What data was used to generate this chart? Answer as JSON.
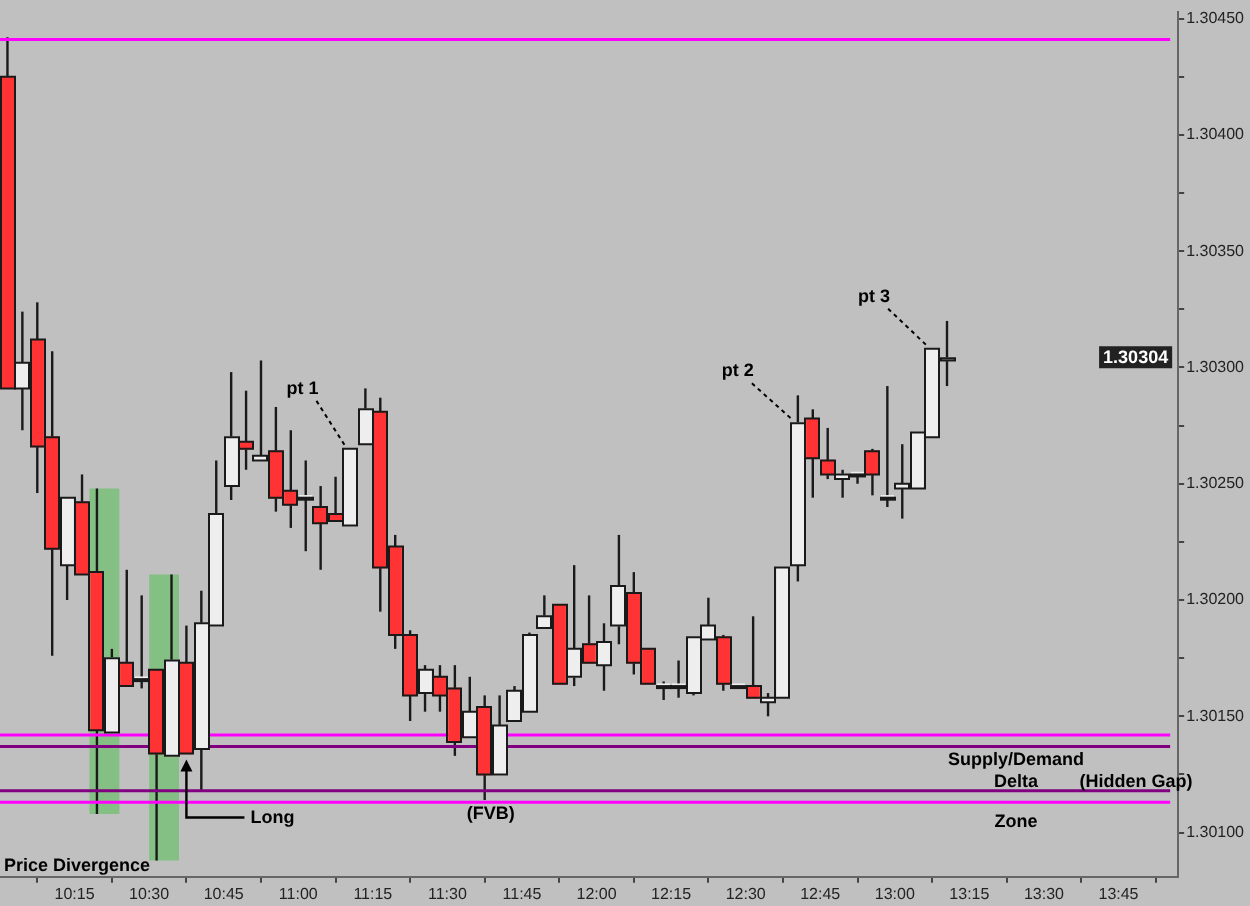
{
  "chart_data": {
    "type": "candlestick",
    "x": [
      10.025,
      10.075,
      10.125,
      10.175,
      10.225,
      10.275,
      10.325,
      10.375,
      10.425,
      10.475,
      10.525,
      10.575,
      10.625,
      10.675,
      10.725,
      10.775,
      10.825,
      10.875,
      10.925,
      10.975,
      11.025,
      11.075,
      11.125,
      11.175,
      11.225,
      11.275,
      11.325,
      11.375,
      11.425,
      11.475,
      11.525,
      11.575,
      11.625,
      11.675,
      11.725,
      11.775,
      11.825,
      11.875,
      11.925,
      11.975,
      12.025,
      12.075,
      12.125,
      12.175,
      12.225,
      12.275,
      12.325,
      12.375,
      12.425,
      12.475,
      12.525,
      12.575,
      12.625,
      12.675,
      12.725,
      12.775,
      12.825,
      12.875,
      12.925,
      12.975,
      13.025,
      13.075,
      13.125,
      13.175
    ],
    "ohlc": [
      [
        1.30425,
        1.30442,
        1.30291,
        1.30291
      ],
      [
        1.30291,
        1.30324,
        1.30273,
        1.30302
      ],
      [
        1.30312,
        1.30328,
        1.30246,
        1.30266
      ],
      [
        1.3027,
        1.30307,
        1.30176,
        1.30222
      ],
      [
        1.30215,
        1.30244,
        1.302,
        1.30244
      ],
      [
        1.30242,
        1.30254,
        1.30211,
        1.30211
      ],
      [
        1.30212,
        1.30248,
        1.30108,
        1.30144
      ],
      [
        1.30143,
        1.30179,
        1.30143,
        1.30175
      ],
      [
        1.30173,
        1.30213,
        1.30163,
        1.30163
      ],
      [
        1.30166,
        1.30202,
        1.30162,
        1.30166
      ],
      [
        1.3017,
        1.3017,
        1.30088,
        1.30134
      ],
      [
        1.30133,
        1.30211,
        1.30133,
        1.30174
      ],
      [
        1.30173,
        1.30189,
        1.30134,
        1.30134
      ],
      [
        1.30136,
        1.30204,
        1.30118,
        1.3019
      ],
      [
        1.30189,
        1.3026,
        1.30189,
        1.30237
      ],
      [
        1.30249,
        1.30298,
        1.30243,
        1.3027
      ],
      [
        1.30268,
        1.3029,
        1.30256,
        1.30265
      ],
      [
        1.3026,
        1.30303,
        1.3026,
        1.30262
      ],
      [
        1.30264,
        1.30283,
        1.30238,
        1.30244
      ],
      [
        1.30247,
        1.30273,
        1.30231,
        1.30241
      ],
      [
        1.30244,
        1.3026,
        1.30221,
        1.30244
      ],
      [
        1.3024,
        1.30249,
        1.30213,
        1.30233
      ],
      [
        1.30237,
        1.30253,
        1.30234,
        1.30234
      ],
      [
        1.30232,
        1.30265,
        1.30232,
        1.30265
      ],
      [
        1.30267,
        1.30291,
        1.30267,
        1.30282
      ],
      [
        1.30281,
        1.30287,
        1.30195,
        1.30214
      ],
      [
        1.30223,
        1.30228,
        1.30179,
        1.30185
      ],
      [
        1.30185,
        1.30187,
        1.30148,
        1.30159
      ],
      [
        1.3016,
        1.30172,
        1.30152,
        1.3017
      ],
      [
        1.30167,
        1.30172,
        1.30152,
        1.30159
      ],
      [
        1.30162,
        1.30172,
        1.30133,
        1.30139
      ],
      [
        1.30141,
        1.30167,
        1.30141,
        1.30152
      ],
      [
        1.30154,
        1.30159,
        1.30114,
        1.30125
      ],
      [
        1.30125,
        1.30159,
        1.30125,
        1.30146
      ],
      [
        1.30148,
        1.30163,
        1.30148,
        1.30161
      ],
      [
        1.30152,
        1.30186,
        1.30152,
        1.30185
      ],
      [
        1.30188,
        1.30202,
        1.30188,
        1.30193
      ],
      [
        1.30198,
        1.30198,
        1.30164,
        1.30164
      ],
      [
        1.30167,
        1.30215,
        1.30163,
        1.30179
      ],
      [
        1.30181,
        1.30202,
        1.30173,
        1.30173
      ],
      [
        1.30172,
        1.3019,
        1.30161,
        1.30182
      ],
      [
        1.30189,
        1.30228,
        1.30181,
        1.30206
      ],
      [
        1.30203,
        1.30212,
        1.30168,
        1.30173
      ],
      [
        1.30179,
        1.30179,
        1.30164,
        1.30164
      ],
      [
        1.30163,
        1.30165,
        1.30157,
        1.30163
      ],
      [
        1.30163,
        1.30174,
        1.30158,
        1.30163
      ],
      [
        1.3016,
        1.30184,
        1.30159,
        1.30184
      ],
      [
        1.30183,
        1.30201,
        1.30183,
        1.30189
      ],
      [
        1.30184,
        1.30185,
        1.30161,
        1.30164
      ],
      [
        1.30163,
        1.30163,
        1.30162,
        1.30163
      ],
      [
        1.30163,
        1.30193,
        1.30158,
        1.30158
      ],
      [
        1.30156,
        1.3016,
        1.3015,
        1.30158
      ],
      [
        1.30158,
        1.30214,
        1.30158,
        1.30214
      ],
      [
        1.30215,
        1.30288,
        1.30208,
        1.30276
      ],
      [
        1.30278,
        1.30282,
        1.30244,
        1.30261
      ],
      [
        1.3026,
        1.30274,
        1.30252,
        1.30254
      ],
      [
        1.30252,
        1.30256,
        1.30244,
        1.30254
      ],
      [
        1.30254,
        1.30255,
        1.3025,
        1.30254
      ],
      [
        1.30264,
        1.30265,
        1.30245,
        1.30254
      ],
      [
        1.30244,
        1.30292,
        1.3024,
        1.30244
      ],
      [
        1.30248,
        1.30267,
        1.30235,
        1.3025
      ],
      [
        1.30248,
        1.30272,
        1.30248,
        1.30272
      ],
      [
        1.3027,
        1.30308,
        1.3027,
        1.30308
      ],
      [
        1.30303,
        1.3032,
        1.30292,
        1.30304
      ]
    ],
    "colors": [
      "#ff3333",
      "#eeeeee",
      "#ff3333",
      "#ff3333",
      "#eeeeee",
      "#ff3333",
      "#ff3333",
      "#eeeeee",
      "#ff3333",
      "#eeeeee",
      "#ff3333",
      "#eeeeee",
      "#ff3333",
      "#eeeeee",
      "#eeeeee",
      "#eeeeee",
      "#ff3333",
      "#eeeeee",
      "#ff3333",
      "#ff3333",
      "#eeeeee",
      "#ff3333",
      "#ff3333",
      "#eeeeee",
      "#eeeeee",
      "#ff3333",
      "#ff3333",
      "#ff3333",
      "#eeeeee",
      "#ff3333",
      "#ff3333",
      "#eeeeee",
      "#ff3333",
      "#eeeeee",
      "#eeeeee",
      "#eeeeee",
      "#eeeeee",
      "#ff3333",
      "#eeeeee",
      "#ff3333",
      "#eeeeee",
      "#eeeeee",
      "#ff3333",
      "#ff3333",
      "#eeeeee",
      "#eeeeee",
      "#eeeeee",
      "#eeeeee",
      "#ff3333",
      "#eeeeee",
      "#ff3333",
      "#eeeeee",
      "#eeeeee",
      "#eeeeee",
      "#ff3333",
      "#ff3333",
      "#eeeeee",
      "#eeeeee",
      "#ff3333",
      "#eeeeee",
      "#eeeeee",
      "#eeeeee",
      "#eeeeee",
      "#eeeeee"
    ],
    "xlim": [
      10,
      13.95
    ],
    "xticks": [
      {
        "value": 10.25,
        "label": "10:15"
      },
      {
        "value": 10.5,
        "label": "10:30"
      },
      {
        "value": 10.75,
        "label": "10:45"
      },
      {
        "value": 11,
        "label": "11:00"
      },
      {
        "value": 11.25,
        "label": "11:15"
      },
      {
        "value": 11.5,
        "label": "11:30"
      },
      {
        "value": 11.75,
        "label": "11:45"
      },
      {
        "value": 12,
        "label": "12:00"
      },
      {
        "value": 12.25,
        "label": "12:15"
      },
      {
        "value": 12.5,
        "label": "12:30"
      },
      {
        "value": 12.75,
        "label": "12:45"
      },
      {
        "value": 13,
        "label": "13:00"
      },
      {
        "value": 13.25,
        "label": "13:15"
      },
      {
        "value": 13.5,
        "label": "13:30"
      },
      {
        "value": 13.75,
        "label": "13:45"
      }
    ],
    "ylim": [
      1.30081,
      1.30453
    ],
    "yticks": [
      {
        "value": 1.301,
        "label": "1.30100"
      },
      {
        "value": 1.30125,
        "label": null
      },
      {
        "value": 1.3015,
        "label": "1.30150"
      },
      {
        "value": 1.30175,
        "label": null
      },
      {
        "value": 1.302,
        "label": "1.30200"
      },
      {
        "value": 1.30225,
        "label": null
      },
      {
        "value": 1.3025,
        "label": "1.30250"
      },
      {
        "value": 1.30275,
        "label": null
      },
      {
        "value": 1.303,
        "label": "1.30300"
      },
      {
        "value": 1.30325,
        "label": null
      },
      {
        "value": 1.3035,
        "label": "1.30350"
      },
      {
        "value": 1.30375,
        "label": null
      },
      {
        "value": 1.304,
        "label": "1.30400"
      },
      {
        "value": 1.30425,
        "label": null
      },
      {
        "value": 1.3045,
        "label": "1.30450"
      }
    ],
    "ref_lines": [
      {
        "axis": "y",
        "value": 1.30441,
        "color": "#ff00ff"
      },
      {
        "axis": "y",
        "value": 1.30142,
        "color": "#ff00ff"
      },
      {
        "axis": "y",
        "value": 1.30137,
        "color": "#800080"
      },
      {
        "axis": "y",
        "value": 1.30118,
        "color": "#800080"
      },
      {
        "axis": "y",
        "value": 1.30113,
        "color": "#ff00ff"
      }
    ],
    "bands": [
      {
        "axis": "x",
        "from": 10.3,
        "to": 10.4,
        "color": "#5cbf5c"
      },
      {
        "axis": "x",
        "from": 10.5,
        "to": 10.6,
        "color": "#5cbf5c"
      }
    ],
    "annotations": [
      {
        "text": "pt 1",
        "x": 11.175,
        "y": 1.30265
      },
      {
        "text": "pt 2",
        "x": 12.675,
        "y": 1.30276
      },
      {
        "text": "pt 3",
        "x": 13.125,
        "y": 1.30308
      },
      {
        "text": "(FVB)",
        "x": 11.625,
        "y": 1.30114
      },
      {
        "text": "Long",
        "x": 10.625,
        "y": 1.30134
      },
      {
        "text": "1.30304",
        "y": 1.30304
      },
      "Supply/Demand",
      "Delta",
      "(Hidden Gap)",
      "Zone",
      "Price Divergence"
    ],
    "grid": false,
    "legend": false
  }
}
